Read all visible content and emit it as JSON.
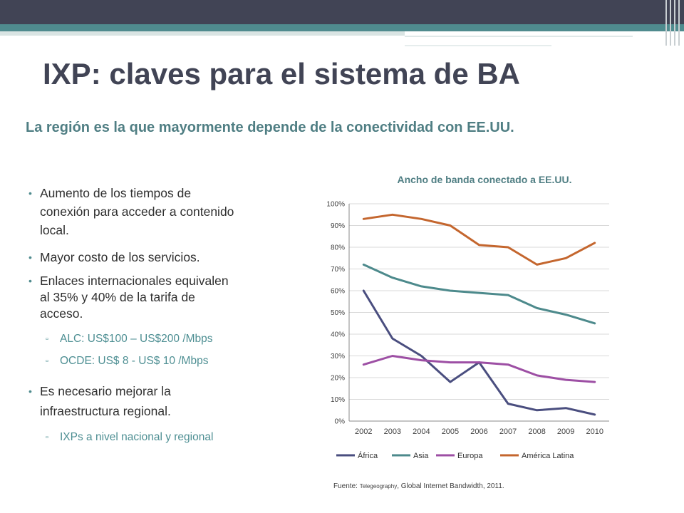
{
  "title": "IXP: claves para el sistema de BA",
  "subtitle": "La región es la que mayormente depende de la conectividad con EE.UU.",
  "bullets": {
    "b1_line1": "Aumento de los tiempos de",
    "b1_line2": "conexión para acceder a contenido",
    "b1_line3": "local.",
    "b2": "Mayor costo de los servicios.",
    "b3_line1": "Enlaces internacionales equivalen",
    "b3_line2": "al  35% y 40% de la tarifa de",
    "b3_line3": "acceso.",
    "b3_sub1": "ALC:  US$100 – US$200 /Mbps",
    "b3_sub2": "OCDE:  US$ 8 - US$ 10 /Mbps",
    "b4_line1": "Es necesario mejorar la",
    "b4_line2": "infraestructura regional.",
    "b4_sub1": "IXPs a nivel  nacional y regional"
  },
  "source": {
    "prefix": "Fuente: ",
    "name": "Telegeography",
    "rest": ", Global Internet Bandwidth, 2011."
  },
  "colors": {
    "title": "#414455",
    "accent": "#4f8b8e"
  },
  "chart_data": {
    "type": "line",
    "title": "Ancho de banda conectado a EE.UU.",
    "xlabel": "",
    "ylabel": "",
    "x": [
      2002,
      2003,
      2004,
      2005,
      2006,
      2007,
      2008,
      2009,
      2010
    ],
    "ylim": [
      0,
      100
    ],
    "yticks": [
      "0%",
      "10%",
      "20%",
      "30%",
      "40%",
      "50%",
      "60%",
      "70%",
      "80%",
      "90%",
      "100%"
    ],
    "grid": true,
    "legend": "bottom",
    "series": [
      {
        "name": "África",
        "color": "#4a4e7f",
        "values": [
          60,
          38,
          30,
          18,
          27,
          8,
          5,
          6,
          3
        ]
      },
      {
        "name": "Asia",
        "color": "#4d8a8c",
        "values": [
          72,
          66,
          62,
          60,
          59,
          58,
          52,
          49,
          45
        ]
      },
      {
        "name": "Europa",
        "color": "#9d4fa4",
        "values": [
          26,
          30,
          28,
          27,
          27,
          26,
          21,
          19,
          18
        ]
      },
      {
        "name": "América Latina",
        "color": "#c4662e",
        "values": [
          93,
          95,
          93,
          90,
          81,
          80,
          72,
          75,
          82
        ]
      }
    ]
  }
}
